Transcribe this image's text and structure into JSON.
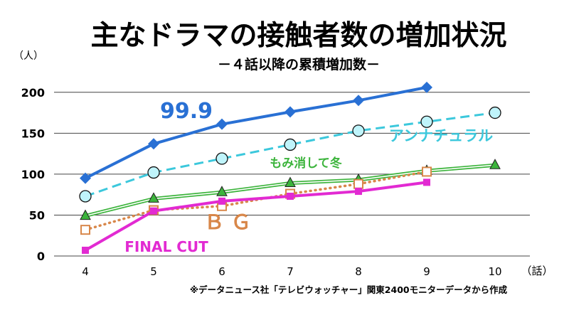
{
  "chart_data": {
    "type": "line",
    "title": "主なドラマの接触者数の増加状況",
    "subtitle": "－４話以降の累積増加数－",
    "ylabel": "（人）",
    "xlabel": "（話）",
    "source_note": "※データニュース社「テレビウォッチャー」関東2400モニターデータから作成",
    "x": [
      4,
      5,
      6,
      7,
      8,
      9,
      10
    ],
    "y_ticks": [
      "0",
      "50",
      "100",
      "150",
      "200"
    ],
    "ylim": [
      0,
      225
    ],
    "grid": true,
    "series": [
      {
        "name": "99.9",
        "color": "#2970d4",
        "marker": "diamond",
        "line": "solid",
        "values": [
          95,
          137,
          161,
          176,
          190,
          206,
          null
        ]
      },
      {
        "name": "アンナチュラル",
        "color": "#3cc8dc",
        "marker": "circle",
        "line": "dashed",
        "values": [
          73,
          102,
          119,
          136,
          153,
          164,
          175
        ]
      },
      {
        "name": "もみ消して冬",
        "color": "#3cb43c",
        "marker": "triangle",
        "line": "double",
        "values": [
          49,
          70,
          78,
          89,
          93,
          104,
          111
        ]
      },
      {
        "name": "Ｂ Ｇ",
        "color": "#d8874a",
        "marker": "open-square",
        "line": "dotted",
        "values": [
          32,
          56,
          61,
          76,
          88,
          103,
          null
        ]
      },
      {
        "name": "FINAL CUT",
        "color": "#e22ad2",
        "marker": "square",
        "line": "solid",
        "values": [
          7,
          55,
          67,
          73,
          79,
          90,
          null
        ]
      }
    ]
  }
}
